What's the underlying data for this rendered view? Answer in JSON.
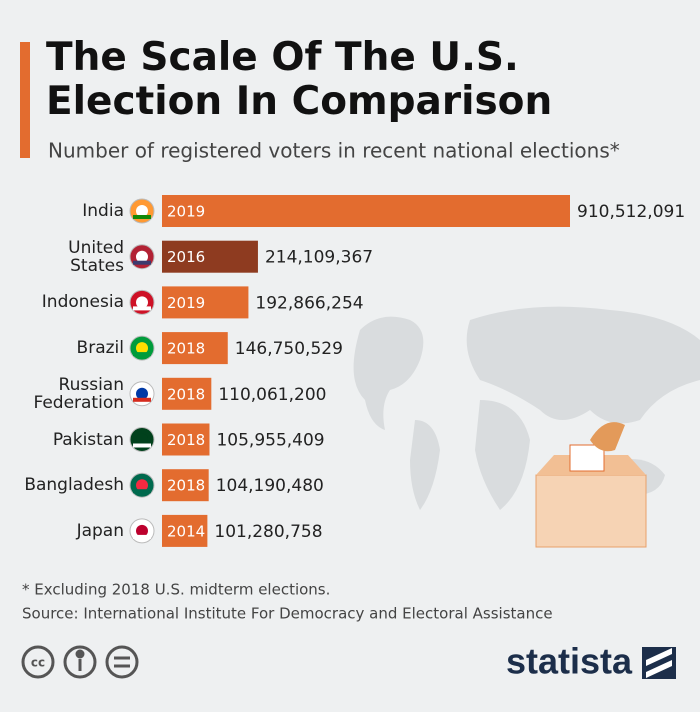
{
  "chart_data": {
    "type": "bar",
    "orientation": "horizontal",
    "title": "The Scale Of The U.S. Election In Comparison",
    "subtitle": "Number of registered voters in recent national elections*",
    "categories": [
      "India",
      "United States",
      "Indonesia",
      "Brazil",
      "Russian Federation",
      "Pakistan",
      "Bangladesh",
      "Japan"
    ],
    "years": [
      "2019",
      "2016",
      "2019",
      "2018",
      "2018",
      "2018",
      "2018",
      "2014"
    ],
    "values": [
      910512091,
      214109367,
      192866254,
      146750529,
      110061200,
      105955409,
      104190480,
      101280758
    ],
    "value_labels": [
      "910,512,091",
      "214,109,367",
      "192,866,254",
      "146,750,529",
      "110,061,200",
      "105,955,409",
      "104,190,480",
      "101,280,758"
    ],
    "colors": [
      "#e36c2f",
      "#8e3b20",
      "#e36c2f",
      "#e36c2f",
      "#e36c2f",
      "#e36c2f",
      "#e36c2f",
      "#e36c2f"
    ],
    "footnote": "* Excluding 2018 U.S. midterm elections.",
    "source": "Source: International Institute For Democracy and Electoral Assistance",
    "license_icon": "cc",
    "brand": "statista"
  }
}
